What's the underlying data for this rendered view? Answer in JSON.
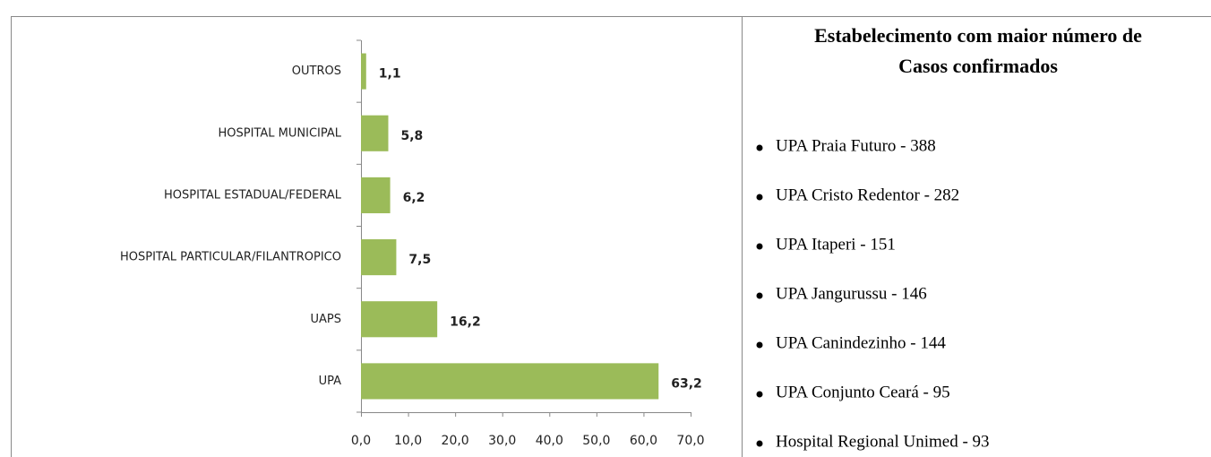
{
  "chart_data": {
    "type": "bar",
    "orientation": "horizontal",
    "categories": [
      "OUTROS",
      "HOSPITAL MUNICIPAL",
      "HOSPITAL ESTADUAL/FEDERAL",
      "HOSPITAL PARTICULAR/FILANTROPICO",
      "UAPS",
      "UPA"
    ],
    "values": [
      1.1,
      5.8,
      6.2,
      7.5,
      16.2,
      63.2
    ],
    "value_labels": [
      "1,1",
      "5,8",
      "6,2",
      "7,5",
      "16,2",
      "63,2"
    ],
    "color": "#9bbb59",
    "xlim": [
      0,
      70
    ],
    "xticks": [
      {
        "value": 0,
        "label": "0,0"
      },
      {
        "value": 10,
        "label": "10,0"
      },
      {
        "value": 20,
        "label": "20,0"
      },
      {
        "value": 30,
        "label": "30,0"
      },
      {
        "value": 40,
        "label": "40,0"
      },
      {
        "value": 50,
        "label": "50,0"
      },
      {
        "value": 60,
        "label": "60,0"
      },
      {
        "value": 70,
        "label": "70,0"
      }
    ],
    "grid": false
  },
  "panel": {
    "title_lines": [
      "Estabelecimento com maior  número de",
      "Casos confirmados"
    ],
    "items": [
      "UPA Praia Futuro - 388",
      "UPA Cristo Redentor  - 282",
      "UPA Itaperi - 151",
      "UPA Jangurussu -  146",
      "UPA Canindezinho - 144",
      "UPA Conjunto Ceará - 95",
      "Hospital Regional Unimed -  93"
    ]
  }
}
